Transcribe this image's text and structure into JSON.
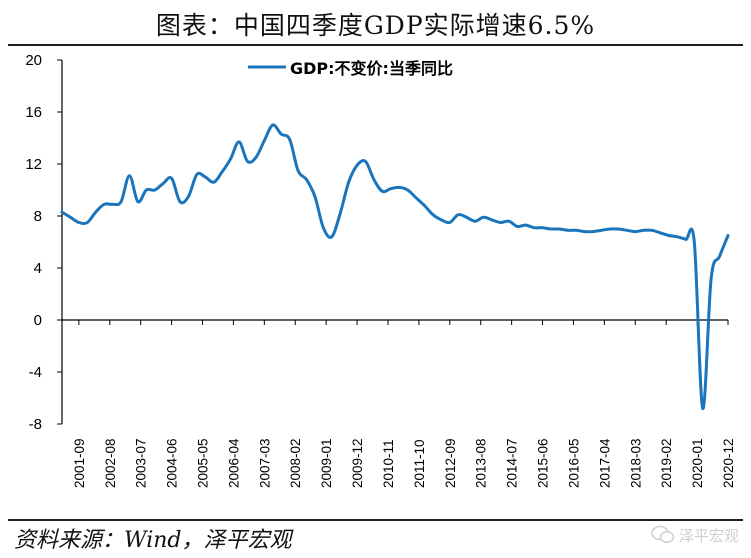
{
  "header": {
    "title": "图表：中国四季度GDP实际增速6.5%"
  },
  "footer": {
    "source": "资料来源：Wind，泽平宏观",
    "watermark": "泽平宏观"
  },
  "chart_data": {
    "type": "line",
    "color": "#1a75bc",
    "series": [
      {
        "name": "GDP:不变价:当季同比",
        "points": [
          [
            "2001-03",
            8.3
          ],
          [
            "2001-06",
            7.9
          ],
          [
            "2001-09",
            7.5
          ],
          [
            "2001-12",
            7.5
          ],
          [
            "2002-03",
            8.3
          ],
          [
            "2002-06",
            8.9
          ],
          [
            "2002-09",
            8.9
          ],
          [
            "2002-12",
            9.1
          ],
          [
            "2003-03",
            11.1
          ],
          [
            "2003-06",
            9.1
          ],
          [
            "2003-09",
            10.0
          ],
          [
            "2003-12",
            10.0
          ],
          [
            "2004-03",
            10.5
          ],
          [
            "2004-06",
            10.9
          ],
          [
            "2004-09",
            9.1
          ],
          [
            "2004-12",
            9.5
          ],
          [
            "2005-03",
            11.2
          ],
          [
            "2005-06",
            11.0
          ],
          [
            "2005-09",
            10.6
          ],
          [
            "2005-12",
            11.4
          ],
          [
            "2006-03",
            12.4
          ],
          [
            "2006-06",
            13.7
          ],
          [
            "2006-09",
            12.2
          ],
          [
            "2006-12",
            12.5
          ],
          [
            "2007-03",
            13.8
          ],
          [
            "2007-06",
            15.0
          ],
          [
            "2007-09",
            14.3
          ],
          [
            "2007-12",
            13.9
          ],
          [
            "2008-03",
            11.5
          ],
          [
            "2008-06",
            10.8
          ],
          [
            "2008-09",
            9.5
          ],
          [
            "2008-12",
            7.1
          ],
          [
            "2009-03",
            6.4
          ],
          [
            "2009-06",
            8.2
          ],
          [
            "2009-09",
            10.6
          ],
          [
            "2009-12",
            11.9
          ],
          [
            "2010-03",
            12.2
          ],
          [
            "2010-06",
            10.8
          ],
          [
            "2010-09",
            9.9
          ],
          [
            "2010-12",
            10.1
          ],
          [
            "2011-03",
            10.2
          ],
          [
            "2011-06",
            10.0
          ],
          [
            "2011-09",
            9.4
          ],
          [
            "2011-12",
            8.8
          ],
          [
            "2012-03",
            8.1
          ],
          [
            "2012-06",
            7.7
          ],
          [
            "2012-09",
            7.5
          ],
          [
            "2012-12",
            8.1
          ],
          [
            "2013-03",
            7.9
          ],
          [
            "2013-06",
            7.6
          ],
          [
            "2013-09",
            7.9
          ],
          [
            "2013-12",
            7.7
          ],
          [
            "2014-03",
            7.5
          ],
          [
            "2014-06",
            7.6
          ],
          [
            "2014-09",
            7.2
          ],
          [
            "2014-12",
            7.3
          ],
          [
            "2015-03",
            7.1
          ],
          [
            "2015-06",
            7.1
          ],
          [
            "2015-09",
            7.0
          ],
          [
            "2015-12",
            7.0
          ],
          [
            "2016-03",
            6.9
          ],
          [
            "2016-06",
            6.9
          ],
          [
            "2016-09",
            6.8
          ],
          [
            "2016-12",
            6.8
          ],
          [
            "2017-03",
            6.9
          ],
          [
            "2017-06",
            7.0
          ],
          [
            "2017-09",
            7.0
          ],
          [
            "2017-12",
            6.9
          ],
          [
            "2018-03",
            6.8
          ],
          [
            "2018-06",
            6.9
          ],
          [
            "2018-09",
            6.9
          ],
          [
            "2018-12",
            6.7
          ],
          [
            "2019-03",
            6.5
          ],
          [
            "2019-06",
            6.4
          ],
          [
            "2019-09",
            6.2
          ],
          [
            "2019-12",
            6.0
          ],
          [
            "2020-03",
            -6.8
          ],
          [
            "2020-06",
            3.2
          ],
          [
            "2020-09",
            4.9
          ],
          [
            "2020-12",
            6.5
          ]
        ]
      }
    ],
    "y_ticks": [
      20,
      16,
      12,
      8,
      4,
      0,
      -4,
      -8
    ],
    "ylim": [
      -8,
      20
    ],
    "x_tick_labels": [
      "2001-09",
      "2002-08",
      "2003-07",
      "2004-06",
      "2005-05",
      "2006-04",
      "2007-03",
      "2008-02",
      "2009-01",
      "2009-12",
      "2010-11",
      "2011-10",
      "2012-09",
      "2013-08",
      "2014-07",
      "2015-06",
      "2016-05",
      "2017-04",
      "2018-03",
      "2019-02",
      "2020-01",
      "2020-12"
    ],
    "legend_position": "top-center",
    "grid": false
  }
}
